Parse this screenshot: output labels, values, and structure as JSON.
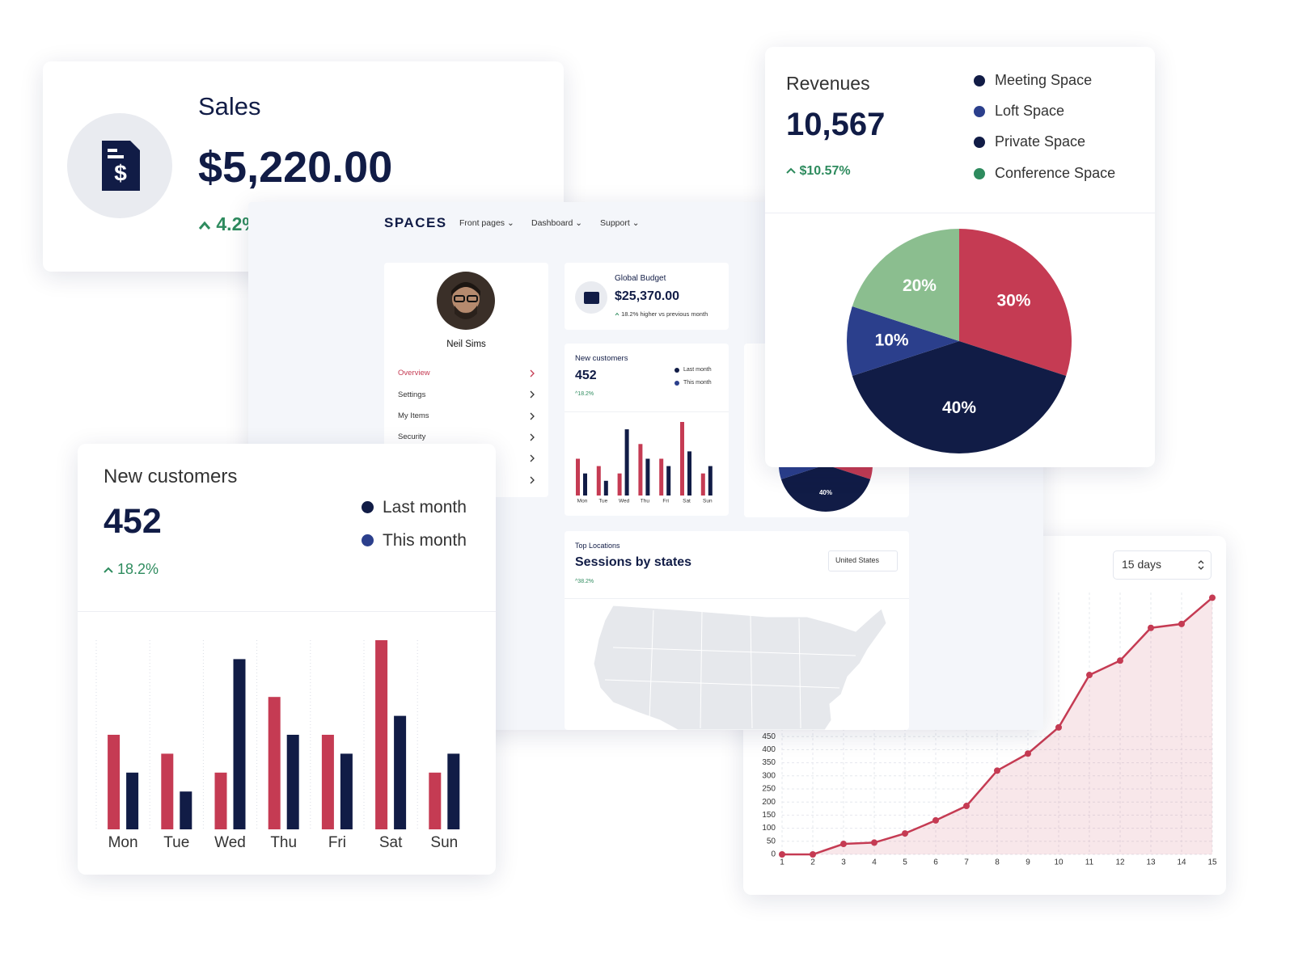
{
  "sales": {
    "title": "Sales",
    "value": "$5,220.00",
    "change": "4.2%"
  },
  "dashboard": {
    "brand": "SPACES",
    "nav": [
      "Front pages",
      "Dashboard",
      "Support"
    ],
    "profile": {
      "name": "Neil Sims",
      "menu": [
        "Overview",
        "Settings",
        "My Items",
        "Security"
      ]
    },
    "budget": {
      "title": "Global Budget",
      "value": "$25,370.00",
      "note": "18.2% higher vs previous month"
    },
    "locations": {
      "label": "Top Locations",
      "title": "Sessions by states",
      "change": "38.2%",
      "select": "United States"
    }
  },
  "revenues": {
    "title": "Revenues",
    "value": "10,567",
    "change": "$10.57%",
    "legend": [
      {
        "name": "Meeting Space",
        "color": "#111c46"
      },
      {
        "name": "Loft Space",
        "color": "#2b3f8c"
      },
      {
        "name": "Private Space",
        "color": "#111c46"
      },
      {
        "name": "Conference Space",
        "color": "#2e8b5e"
      }
    ],
    "chart_data": {
      "type": "pie",
      "values": [
        30,
        40,
        10,
        20
      ],
      "value_labels": [
        "30%",
        "40%",
        "10%",
        "20%"
      ],
      "colors": [
        "#c53b53",
        "#111c46",
        "#2b3f8c",
        "#8bbe8f"
      ]
    }
  },
  "new_customers": {
    "title": "New customers",
    "value": "452",
    "change": "18.2%",
    "legend": [
      {
        "name": "Last month",
        "color": "#111c46"
      },
      {
        "name": "This month",
        "color": "#2b3f8c"
      }
    ],
    "chart_data": {
      "type": "bar",
      "categories": [
        "Mon",
        "Tue",
        "Wed",
        "Thu",
        "Fri",
        "Sat",
        "Sun"
      ],
      "series": [
        {
          "color": "#c53b53",
          "values": [
            5,
            4,
            3,
            7,
            5,
            10,
            3
          ]
        },
        {
          "color": "#111c46",
          "values": [
            3,
            2,
            9,
            5,
            4,
            6,
            4
          ]
        }
      ],
      "ylim": [
        0,
        10
      ]
    }
  },
  "sessions": {
    "select": "15 days",
    "chart_data": {
      "type": "line",
      "x": [
        1,
        2,
        3,
        4,
        5,
        6,
        7,
        8,
        9,
        10,
        11,
        12,
        13,
        14,
        15
      ],
      "values": [
        0,
        0,
        40,
        45,
        80,
        130,
        185,
        320,
        385,
        485,
        685,
        740,
        865,
        880,
        980
      ],
      "color": "#c53b53",
      "xlim": [
        1,
        15
      ],
      "ylim": [
        0,
        1000
      ],
      "xticks": [
        1,
        2,
        3,
        4,
        5,
        6,
        7,
        8,
        9,
        10,
        11,
        12,
        13,
        14,
        15
      ],
      "yticks": [
        0,
        50,
        100,
        150,
        200,
        250,
        300,
        350,
        400,
        450
      ],
      "grid": true
    }
  }
}
